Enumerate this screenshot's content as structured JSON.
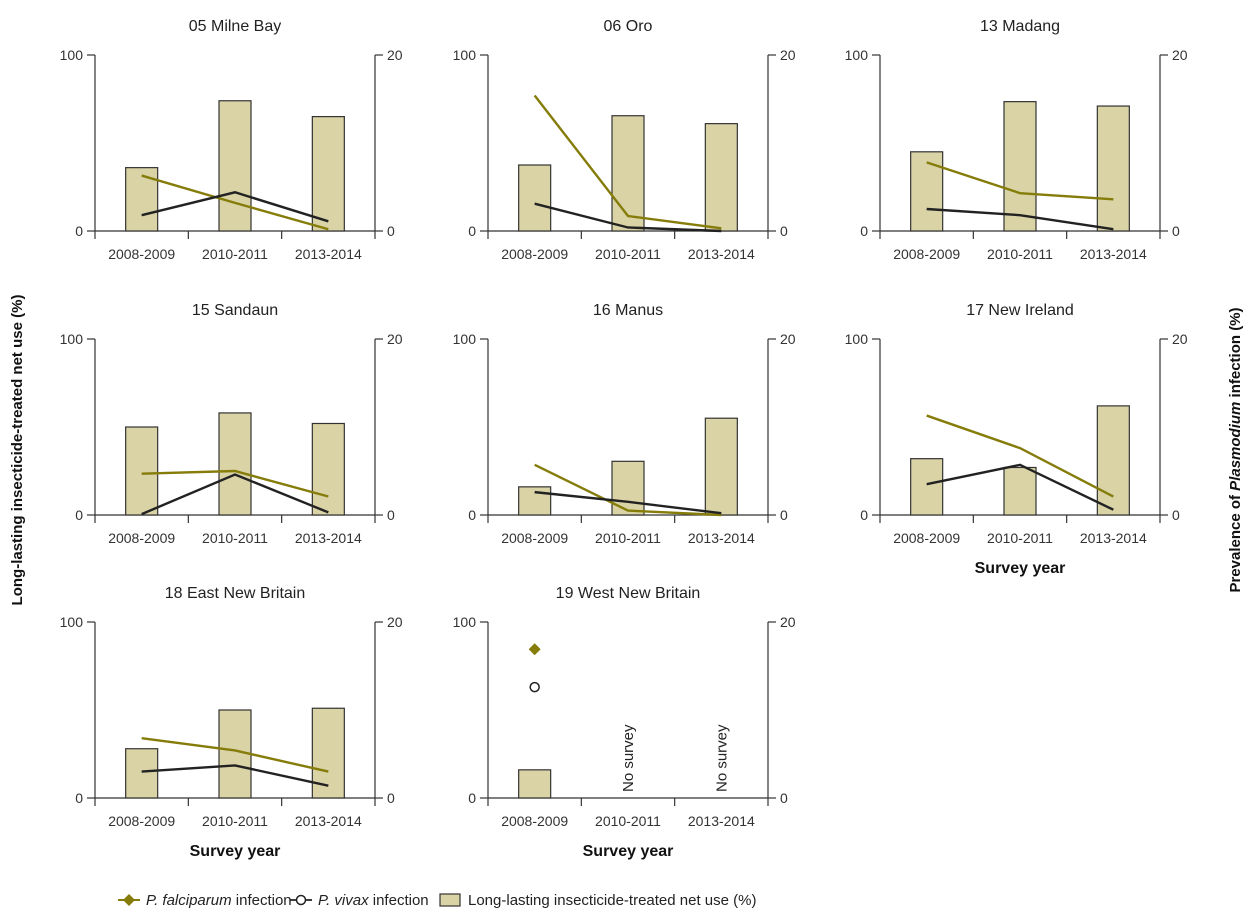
{
  "y_left_label": "Long-lasting insecticide-treated net use (%)",
  "y_right_label_prefix": "Prevalence of ",
  "y_right_label_italic": "Plasmodium",
  "y_right_label_suffix": " infection (%)",
  "colors": {
    "bar_fill": "#d9d3a6",
    "bar_stroke": "#333333",
    "pf": "#857c0a",
    "pv": "#222222"
  },
  "legend": [
    {
      "key": "pf",
      "label_italic": "P. falciparum",
      "label_rest": " infection"
    },
    {
      "key": "pv",
      "label_italic": "P. vivax",
      "label_rest": " infection"
    },
    {
      "key": "bar",
      "label_italic": "",
      "label_rest": "Long-lasting insecticide-treated net use (%)"
    }
  ],
  "chart_data": [
    {
      "type": "bar+line",
      "title": "05 Milne Bay",
      "categories": [
        "2008-2009",
        "2010-2011",
        "2013-2014"
      ],
      "left_ticks": [
        "0",
        "100"
      ],
      "right_ticks": [
        "0",
        "20"
      ],
      "left_ylim": [
        0,
        100
      ],
      "right_ylim": [
        0,
        20
      ],
      "xlabel": "",
      "series": [
        {
          "name": "Long-lasting insecticide-treated net use (%)",
          "axis": "left",
          "kind": "bar",
          "values": [
            36,
            74,
            65
          ]
        },
        {
          "name": "P. falciparum infection",
          "axis": "right",
          "kind": "line",
          "values": [
            6.3,
            3.2,
            0.2
          ]
        },
        {
          "name": "P. vivax infection",
          "axis": "right",
          "kind": "line",
          "values": [
            1.8,
            4.4,
            1.1
          ]
        }
      ]
    },
    {
      "type": "bar+line",
      "title": "06 Oro",
      "categories": [
        "2008-2009",
        "2010-2011",
        "2013-2014"
      ],
      "left_ticks": [
        "0",
        "100"
      ],
      "right_ticks": [
        "0",
        "20"
      ],
      "left_ylim": [
        0,
        100
      ],
      "right_ylim": [
        0,
        20
      ],
      "xlabel": "",
      "series": [
        {
          "name": "Long-lasting insecticide-treated net use (%)",
          "axis": "left",
          "kind": "bar",
          "values": [
            37.5,
            65.5,
            61
          ]
        },
        {
          "name": "P. falciparum infection",
          "axis": "right",
          "kind": "line",
          "values": [
            15.4,
            1.7,
            0.3
          ]
        },
        {
          "name": "P. vivax infection",
          "axis": "right",
          "kind": "line",
          "values": [
            3.1,
            0.4,
            0
          ]
        }
      ]
    },
    {
      "type": "bar+line",
      "title": "13 Madang",
      "categories": [
        "2008-2009",
        "2010-2011",
        "2013-2014"
      ],
      "left_ticks": [
        "0",
        "100"
      ],
      "right_ticks": [
        "0",
        "20"
      ],
      "left_ylim": [
        0,
        100
      ],
      "right_ylim": [
        0,
        20
      ],
      "xlabel": "",
      "series": [
        {
          "name": "Long-lasting insecticide-treated net use (%)",
          "axis": "left",
          "kind": "bar",
          "values": [
            45,
            73.5,
            71
          ]
        },
        {
          "name": "P. falciparum infection",
          "axis": "right",
          "kind": "line",
          "values": [
            7.8,
            4.3,
            3.6
          ]
        },
        {
          "name": "P. vivax infection",
          "axis": "right",
          "kind": "line",
          "values": [
            2.5,
            1.8,
            0.2
          ]
        }
      ]
    },
    {
      "type": "bar+line",
      "title": "15 Sandaun",
      "categories": [
        "2008-2009",
        "2010-2011",
        "2013-2014"
      ],
      "left_ticks": [
        "0",
        "100"
      ],
      "right_ticks": [
        "0",
        "20"
      ],
      "left_ylim": [
        0,
        100
      ],
      "right_ylim": [
        0,
        20
      ],
      "xlabel": "",
      "series": [
        {
          "name": "Long-lasting insecticide-treated net use (%)",
          "axis": "left",
          "kind": "bar",
          "values": [
            50,
            58,
            52
          ]
        },
        {
          "name": "P. falciparum infection",
          "axis": "right",
          "kind": "line",
          "values": [
            4.7,
            5.0,
            2.1
          ]
        },
        {
          "name": "P. vivax infection",
          "axis": "right",
          "kind": "line",
          "values": [
            0.1,
            4.6,
            0.3
          ]
        }
      ]
    },
    {
      "type": "bar+line",
      "title": "16 Manus",
      "categories": [
        "2008-2009",
        "2010-2011",
        "2013-2014"
      ],
      "left_ticks": [
        "0",
        "100"
      ],
      "right_ticks": [
        "0",
        "20"
      ],
      "left_ylim": [
        0,
        100
      ],
      "right_ylim": [
        0,
        20
      ],
      "xlabel": "",
      "series": [
        {
          "name": "Long-lasting insecticide-treated net use (%)",
          "axis": "left",
          "kind": "bar",
          "values": [
            16,
            30.5,
            55
          ]
        },
        {
          "name": "P. falciparum infection",
          "axis": "right",
          "kind": "line",
          "values": [
            5.7,
            0.5,
            0
          ]
        },
        {
          "name": "P. vivax infection",
          "axis": "right",
          "kind": "line",
          "values": [
            2.6,
            1.5,
            0.2
          ]
        }
      ]
    },
    {
      "type": "bar+line",
      "title": "17 New Ireland",
      "categories": [
        "2008-2009",
        "2010-2011",
        "2013-2014"
      ],
      "left_ticks": [
        "0",
        "100"
      ],
      "right_ticks": [
        "0",
        "20"
      ],
      "left_ylim": [
        0,
        100
      ],
      "right_ylim": [
        0,
        20
      ],
      "xlabel": "Survey year",
      "series": [
        {
          "name": "Long-lasting insecticide-treated net use (%)",
          "axis": "left",
          "kind": "bar",
          "values": [
            32,
            27,
            62
          ]
        },
        {
          "name": "P. falciparum infection",
          "axis": "right",
          "kind": "line",
          "values": [
            11.3,
            7.6,
            2.1
          ]
        },
        {
          "name": "P. vivax infection",
          "axis": "right",
          "kind": "line",
          "values": [
            3.5,
            5.7,
            0.6
          ]
        }
      ]
    },
    {
      "type": "bar+line",
      "title": "18 East New Britain",
      "categories": [
        "2008-2009",
        "2010-2011",
        "2013-2014"
      ],
      "left_ticks": [
        "0",
        "100"
      ],
      "right_ticks": [
        "0",
        "20"
      ],
      "left_ylim": [
        0,
        100
      ],
      "right_ylim": [
        0,
        20
      ],
      "xlabel": "Survey year",
      "series": [
        {
          "name": "Long-lasting insecticide-treated net use (%)",
          "axis": "left",
          "kind": "bar",
          "values": [
            28,
            50,
            51
          ]
        },
        {
          "name": "P. falciparum infection",
          "axis": "right",
          "kind": "line",
          "values": [
            6.8,
            5.4,
            3.0
          ]
        },
        {
          "name": "P. vivax infection",
          "axis": "right",
          "kind": "line",
          "values": [
            3.0,
            3.7,
            1.4
          ]
        }
      ]
    },
    {
      "type": "bar+line",
      "title": "19 West New Britain",
      "categories": [
        "2008-2009",
        "2010-2011",
        "2013-2014"
      ],
      "left_ticks": [
        "0",
        "100"
      ],
      "right_ticks": [
        "0",
        "20"
      ],
      "left_ylim": [
        0,
        100
      ],
      "right_ylim": [
        0,
        20
      ],
      "xlabel": "Survey year",
      "annotations": [
        "",
        "No survey",
        "No survey"
      ],
      "series": [
        {
          "name": "Long-lasting insecticide-treated net use (%)",
          "axis": "left",
          "kind": "bar",
          "values": [
            16,
            null,
            null
          ]
        },
        {
          "name": "P. falciparum infection",
          "axis": "right",
          "kind": "marker",
          "values": [
            16.9,
            null,
            null
          ]
        },
        {
          "name": "P. vivax infection",
          "axis": "right",
          "kind": "marker",
          "values": [
            12.6,
            null,
            null
          ]
        }
      ]
    }
  ]
}
